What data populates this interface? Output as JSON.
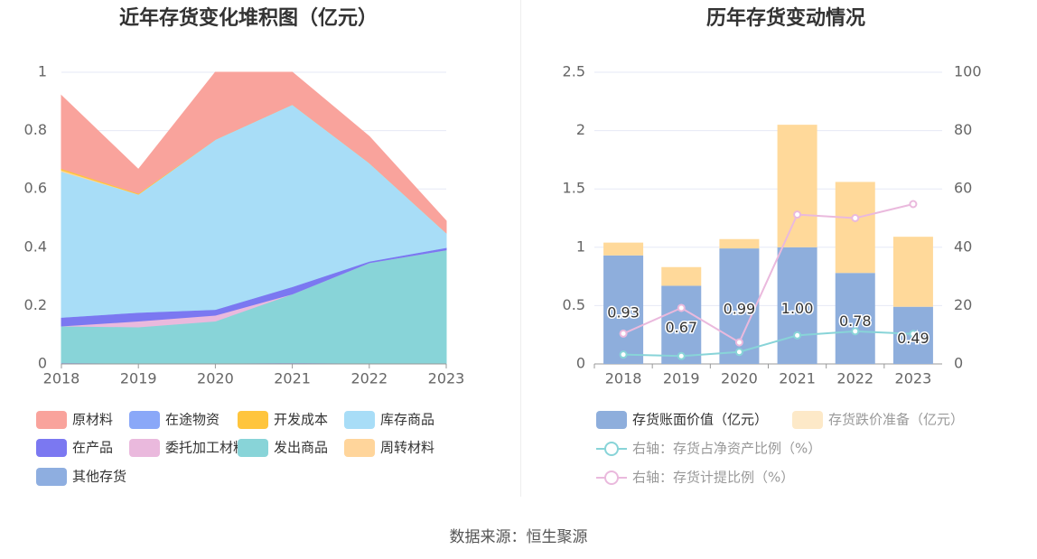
{
  "source_text": "数据来源：恒生聚源",
  "chart_data": [
    {
      "type": "area",
      "stacked": true,
      "title": "近年存货变化堆积图（亿元）",
      "x": [
        "2018",
        "2019",
        "2020",
        "2021",
        "2022",
        "2023"
      ],
      "ylim": [
        0,
        1
      ],
      "yticks": [
        "0",
        "0.2",
        "0.4",
        "0.6",
        "0.8",
        "1"
      ],
      "grid": true,
      "legend_position": "bottom",
      "series": [
        {
          "name": "其他存货",
          "color": "#8EAEE0",
          "values": [
            0.005,
            0.002,
            0.002,
            0.005,
            0.002,
            0.001
          ]
        },
        {
          "name": "发出商品",
          "color": "#88D4D8",
          "values": [
            0.125,
            0.125,
            0.145,
            0.235,
            0.345,
            0.39
          ]
        },
        {
          "name": "委托加工材料",
          "color": "#EAB9DD",
          "values": [
            0.0,
            0.02,
            0.02,
            0.0,
            0.0,
            0.0
          ]
        },
        {
          "name": "在产品",
          "color": "#7B78F1",
          "values": [
            0.03,
            0.03,
            0.02,
            0.025,
            0.005,
            0.008
          ]
        },
        {
          "name": "在途物资",
          "color": "#8AA8F8",
          "values": [
            0.0,
            0.0,
            0.0,
            0.0,
            0.0,
            0.0
          ]
        },
        {
          "name": "库存商品",
          "color": "#A8DDF7",
          "values": [
            0.5,
            0.405,
            0.583,
            0.625,
            0.338,
            0.051
          ]
        },
        {
          "name": "周转材料",
          "color": "#FFD59B",
          "values": [
            0.005,
            0.0,
            0.0,
            0.0,
            0.0,
            0.0
          ]
        },
        {
          "name": "开发成本",
          "color": "#FFC53D",
          "values": [
            0.005,
            0.003,
            0.0,
            0.0,
            0.0,
            0.0
          ]
        },
        {
          "name": "原材料",
          "color": "#F9A39C",
          "values": [
            0.25,
            0.082,
            0.26,
            0.13,
            0.09,
            0.04
          ]
        }
      ],
      "legend_order": [
        "原材料",
        "在途物资",
        "开发成本",
        "库存商品",
        "在产品",
        "委托加工材料",
        "发出商品",
        "周转材料",
        "其他存货"
      ]
    },
    {
      "type": "bar",
      "stacked": true,
      "title": "历年存货变动情况",
      "categories": [
        "2018",
        "2019",
        "2020",
        "2021",
        "2022",
        "2023"
      ],
      "ylim": [
        0,
        2.5
      ],
      "yticks": [
        "0",
        "0.5",
        "1",
        "1.5",
        "2",
        "2.5"
      ],
      "y2lim": [
        0,
        100
      ],
      "y2ticks": [
        "0",
        "20",
        "40",
        "60",
        "80",
        "100"
      ],
      "grid": true,
      "legend_position": "bottom",
      "bar_series": [
        {
          "name": "存货账面价值（亿元）",
          "color": "#8EAEDC",
          "values": [
            0.93,
            0.67,
            0.99,
            1.0,
            0.78,
            0.49
          ],
          "labels": [
            "0.93",
            "0.67",
            "0.99",
            "1.00",
            "0.78",
            "0.49"
          ]
        },
        {
          "name": "存货跌价准备（亿元）",
          "color": "#FFD99A",
          "legend_color": "#FDE9C8",
          "values": [
            0.11,
            0.16,
            0.08,
            1.05,
            0.78,
            0.6
          ]
        }
      ],
      "line_series": [
        {
          "name": "右轴：存货占净资产比例（%）",
          "color": "#88D4D8",
          "values": [
            3.2,
            2.7,
            4.1,
            9.8,
            11.2,
            10.3
          ]
        },
        {
          "name": "右轴：存货计提比例（%）",
          "color": "#EAB9DD",
          "values": [
            10.4,
            19.2,
            7.4,
            51.2,
            50.0,
            54.8
          ]
        }
      ]
    }
  ]
}
